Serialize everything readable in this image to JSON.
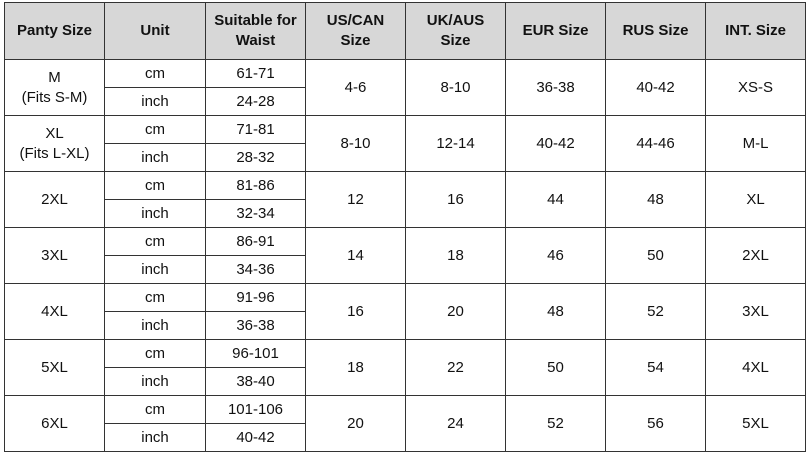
{
  "table": {
    "header": [
      "Panty Size",
      "Unit",
      "Suitable for\nWaist",
      "US/CAN\nSize",
      "UK/AUS\nSize",
      "EUR  Size",
      "RUS Size",
      "INT. Size"
    ],
    "rows": [
      {
        "size": "M\n(Fits S-M)",
        "units": [
          "cm",
          "inch"
        ],
        "waist": [
          "61-71",
          "24-28"
        ],
        "us": "4-6",
        "uk": "8-10",
        "eur": "36-38",
        "rus": "40-42",
        "int": "XS-S"
      },
      {
        "size": "XL\n(Fits L-XL)",
        "units": [
          "cm",
          "inch"
        ],
        "waist": [
          "71-81",
          "28-32"
        ],
        "us": "8-10",
        "uk": "12-14",
        "eur": "40-42",
        "rus": "44-46",
        "int": "M-L"
      },
      {
        "size": "2XL",
        "units": [
          "cm",
          "inch"
        ],
        "waist": [
          "81-86",
          "32-34"
        ],
        "us": "12",
        "uk": "16",
        "eur": "44",
        "rus": "48",
        "int": "XL"
      },
      {
        "size": "3XL",
        "units": [
          "cm",
          "inch"
        ],
        "waist": [
          "86-91",
          "34-36"
        ],
        "us": "14",
        "uk": "18",
        "eur": "46",
        "rus": "50",
        "int": "2XL"
      },
      {
        "size": "4XL",
        "units": [
          "cm",
          "inch"
        ],
        "waist": [
          "91-96",
          "36-38"
        ],
        "us": "16",
        "uk": "20",
        "eur": "48",
        "rus": "52",
        "int": "3XL"
      },
      {
        "size": "5XL",
        "units": [
          "cm",
          "inch"
        ],
        "waist": [
          "96-101",
          "38-40"
        ],
        "us": "18",
        "uk": "22",
        "eur": "50",
        "rus": "54",
        "int": "4XL"
      },
      {
        "size": "6XL",
        "units": [
          "cm",
          "inch"
        ],
        "waist": [
          "101-106",
          "40-42"
        ],
        "us": "20",
        "uk": "24",
        "eur": "52",
        "rus": "56",
        "int": "5XL"
      }
    ]
  }
}
